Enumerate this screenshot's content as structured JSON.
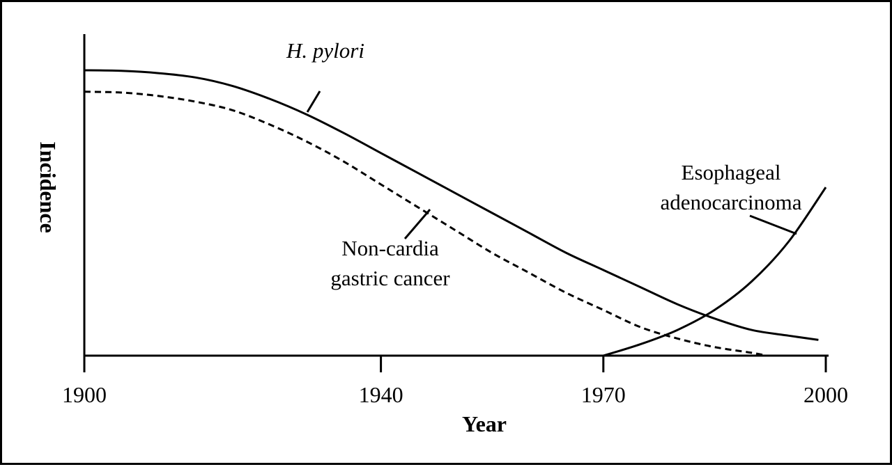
{
  "chart_data": {
    "type": "line",
    "title": "",
    "xlabel": "Year",
    "ylabel": "Incidence",
    "xlim": [
      1900,
      2000
    ],
    "ylim": [
      0,
      1
    ],
    "x_ticks": [
      1900,
      1940,
      1970,
      2000
    ],
    "x_tick_labels": [
      "1900",
      "1940",
      "1970",
      "2000"
    ],
    "y_ticks": [],
    "grid": false,
    "legend": "none",
    "series": [
      {
        "name": "H. pylori",
        "label_lines": [
          "H. pylori"
        ],
        "label_style": "italic",
        "line_style": "solid",
        "color": "#000000",
        "x": [
          1900,
          1905,
          1910,
          1915,
          1920,
          1925,
          1930,
          1935,
          1940,
          1945,
          1950,
          1955,
          1960,
          1965,
          1970,
          1975,
          1980,
          1985,
          1990,
          1995,
          1999
        ],
        "y": [
          1.0,
          0.998,
          0.99,
          0.975,
          0.945,
          0.9,
          0.845,
          0.78,
          0.71,
          0.64,
          0.57,
          0.5,
          0.43,
          0.36,
          0.3,
          0.24,
          0.18,
          0.13,
          0.09,
          0.07,
          0.055
        ]
      },
      {
        "name": "Non-cardia gastric cancer",
        "label_lines": [
          "Non-cardia",
          "gastric cancer"
        ],
        "label_style": "normal",
        "line_style": "dashed",
        "color": "#000000",
        "x": [
          1900,
          1905,
          1910,
          1915,
          1920,
          1925,
          1930,
          1935,
          1940,
          1945,
          1950,
          1955,
          1960,
          1965,
          1970,
          1975,
          1980,
          1985,
          1990,
          1992
        ],
        "y": [
          0.925,
          0.922,
          0.91,
          0.89,
          0.86,
          0.81,
          0.75,
          0.68,
          0.6,
          0.52,
          0.44,
          0.36,
          0.29,
          0.22,
          0.16,
          0.1,
          0.06,
          0.03,
          0.01,
          0.0
        ]
      },
      {
        "name": "Esophageal adenocarcinoma",
        "label_lines": [
          "Esophageal",
          "adenocarcinoma"
        ],
        "label_style": "normal",
        "line_style": "solid",
        "color": "#000000",
        "x": [
          1970,
          1975,
          1980,
          1985,
          1990,
          1995,
          2000
        ],
        "y": [
          0.0,
          0.04,
          0.09,
          0.16,
          0.26,
          0.4,
          0.59
        ]
      }
    ]
  }
}
